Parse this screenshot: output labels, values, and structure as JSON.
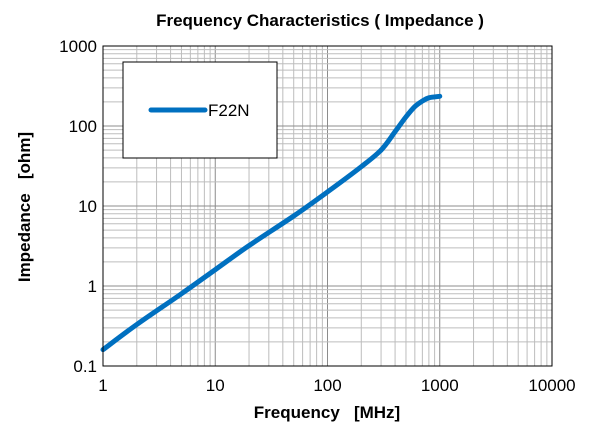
{
  "chart_data": {
    "type": "line",
    "title": "Frequency Characteristics ( Impedance )",
    "xlabel": "Frequency   [MHz]",
    "ylabel": "Impedance   [ohm]",
    "xscale": "log",
    "yscale": "log",
    "xlim": [
      1,
      10000
    ],
    "ylim": [
      0.1,
      1000
    ],
    "x_ticks": [
      "1",
      "10",
      "100",
      "1000",
      "10000"
    ],
    "y_ticks": [
      "0.1",
      "1",
      "10",
      "100",
      "1000"
    ],
    "grid": true,
    "legend_position": "top-left",
    "series": [
      {
        "name": "F22N",
        "color": "#0070c0",
        "x": [
          1,
          2,
          5,
          10,
          20,
          50,
          100,
          200,
          300,
          400,
          500,
          600,
          700,
          800,
          1000
        ],
        "y": [
          0.16,
          0.33,
          0.8,
          1.6,
          3.2,
          7.5,
          15,
          31,
          50,
          85,
          130,
          175,
          205,
          225,
          235
        ]
      }
    ]
  }
}
